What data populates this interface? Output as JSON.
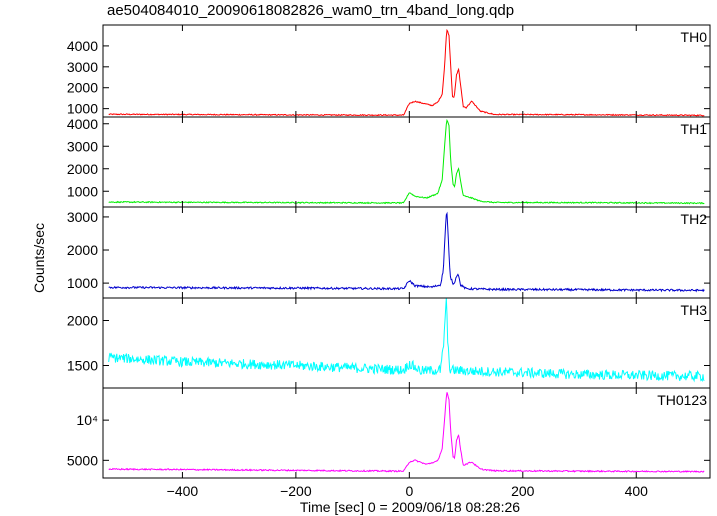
{
  "title": "ae504084010_20090618082826_wam0_trn_4band_long.qdp",
  "chart_data": {
    "type": "line",
    "title": "ae504084010_20090618082826_wam0_trn_4band_long.qdp",
    "xlabel": "Time [sec] 0 = 2009/06/18 08:28:26",
    "ylabel": "Counts/sec",
    "xlim": [
      -540,
      530
    ],
    "x_ticks": [
      -400,
      -200,
      0,
      200,
      400
    ],
    "x_tick_labels": [
      "−400",
      "−200",
      "0",
      "200",
      "400"
    ],
    "grid": false,
    "panels": [
      {
        "name": "TH0",
        "color": "#ff0000",
        "ylim": [
          600,
          5000
        ],
        "y_ticks": [
          1000,
          2000,
          3000,
          4000
        ],
        "y_tick_labels": [
          "1000",
          "2000",
          "3000",
          "4000"
        ],
        "noise": 25,
        "points": [
          [
            -530,
            730
          ],
          [
            -400,
            720
          ],
          [
            -200,
            700
          ],
          [
            -10,
            690
          ],
          [
            0,
            1250
          ],
          [
            10,
            1350
          ],
          [
            25,
            1250
          ],
          [
            40,
            1150
          ],
          [
            50,
            1300
          ],
          [
            58,
            1700
          ],
          [
            62,
            3000
          ],
          [
            66,
            4800
          ],
          [
            70,
            4500
          ],
          [
            73,
            3000
          ],
          [
            76,
            1600
          ],
          [
            79,
            1500
          ],
          [
            83,
            2600
          ],
          [
            87,
            2900
          ],
          [
            90,
            2200
          ],
          [
            95,
            1100
          ],
          [
            100,
            1050
          ],
          [
            110,
            1350
          ],
          [
            115,
            1200
          ],
          [
            125,
            880
          ],
          [
            150,
            720
          ],
          [
            300,
            710
          ],
          [
            520,
            680
          ]
        ]
      },
      {
        "name": "TH1",
        "color": "#00ee00",
        "ylim": [
          300,
          4300
        ],
        "y_ticks": [
          1000,
          2000,
          3000,
          4000
        ],
        "y_tick_labels": [
          "1000",
          "2000",
          "3000",
          "4000"
        ],
        "noise": 25,
        "points": [
          [
            -530,
            520
          ],
          [
            -400,
            510
          ],
          [
            -200,
            495
          ],
          [
            -10,
            480
          ],
          [
            0,
            950
          ],
          [
            10,
            780
          ],
          [
            30,
            700
          ],
          [
            50,
            900
          ],
          [
            58,
            1500
          ],
          [
            62,
            3000
          ],
          [
            66,
            4200
          ],
          [
            70,
            3900
          ],
          [
            73,
            2300
          ],
          [
            77,
            1300
          ],
          [
            80,
            1200
          ],
          [
            83,
            1800
          ],
          [
            87,
            2000
          ],
          [
            90,
            1500
          ],
          [
            95,
            800
          ],
          [
            110,
            700
          ],
          [
            125,
            560
          ],
          [
            150,
            500
          ],
          [
            300,
            495
          ],
          [
            520,
            470
          ]
        ]
      },
      {
        "name": "TH2",
        "color": "#0000cc",
        "ylim": [
          550,
          3300
        ],
        "y_ticks": [
          1000,
          2000,
          3000
        ],
        "y_tick_labels": [
          "1000",
          "2000",
          "3000"
        ],
        "noise": 30,
        "points": [
          [
            -530,
            870
          ],
          [
            -400,
            860
          ],
          [
            -200,
            850
          ],
          [
            -10,
            830
          ],
          [
            0,
            1080
          ],
          [
            10,
            920
          ],
          [
            40,
            880
          ],
          [
            55,
            950
          ],
          [
            60,
            1400
          ],
          [
            63,
            2500
          ],
          [
            66,
            3250
          ],
          [
            69,
            2200
          ],
          [
            72,
            1200
          ],
          [
            78,
            950
          ],
          [
            83,
            1200
          ],
          [
            86,
            1300
          ],
          [
            90,
            950
          ],
          [
            100,
            830
          ],
          [
            150,
            810
          ],
          [
            300,
            800
          ],
          [
            520,
            780
          ]
        ]
      },
      {
        "name": "TH3",
        "color": "#00ffff",
        "ylim": [
          1250,
          2250
        ],
        "y_ticks": [
          1500,
          2000
        ],
        "y_tick_labels": [
          "1500",
          "2000"
        ],
        "noise": 55,
        "points": [
          [
            -530,
            1590
          ],
          [
            -400,
            1540
          ],
          [
            -200,
            1500
          ],
          [
            -10,
            1450
          ],
          [
            0,
            1520
          ],
          [
            20,
            1440
          ],
          [
            55,
            1450
          ],
          [
            60,
            1700
          ],
          [
            63,
            2000
          ],
          [
            65,
            2300
          ],
          [
            68,
            1700
          ],
          [
            72,
            1450
          ],
          [
            100,
            1440
          ],
          [
            200,
            1420
          ],
          [
            300,
            1400
          ],
          [
            400,
            1390
          ],
          [
            520,
            1380
          ]
        ]
      },
      {
        "name": "TH0123",
        "color": "#ff00ff",
        "ylim": [
          2800,
          14000
        ],
        "y_ticks": [
          5000,
          10000
        ],
        "y_tick_labels": [
          "5000",
          "10⁴"
        ],
        "noise": 80,
        "points": [
          [
            -530,
            3900
          ],
          [
            -400,
            3850
          ],
          [
            -200,
            3750
          ],
          [
            -10,
            3650
          ],
          [
            0,
            4800
          ],
          [
            10,
            5000
          ],
          [
            30,
            4500
          ],
          [
            50,
            4900
          ],
          [
            58,
            6500
          ],
          [
            62,
            10000
          ],
          [
            66,
            13500
          ],
          [
            70,
            12500
          ],
          [
            73,
            8500
          ],
          [
            77,
            5500
          ],
          [
            80,
            5300
          ],
          [
            83,
            7500
          ],
          [
            87,
            8200
          ],
          [
            90,
            6500
          ],
          [
            95,
            4400
          ],
          [
            110,
            4800
          ],
          [
            125,
            3900
          ],
          [
            150,
            3700
          ],
          [
            300,
            3650
          ],
          [
            520,
            3600
          ]
        ]
      }
    ]
  }
}
